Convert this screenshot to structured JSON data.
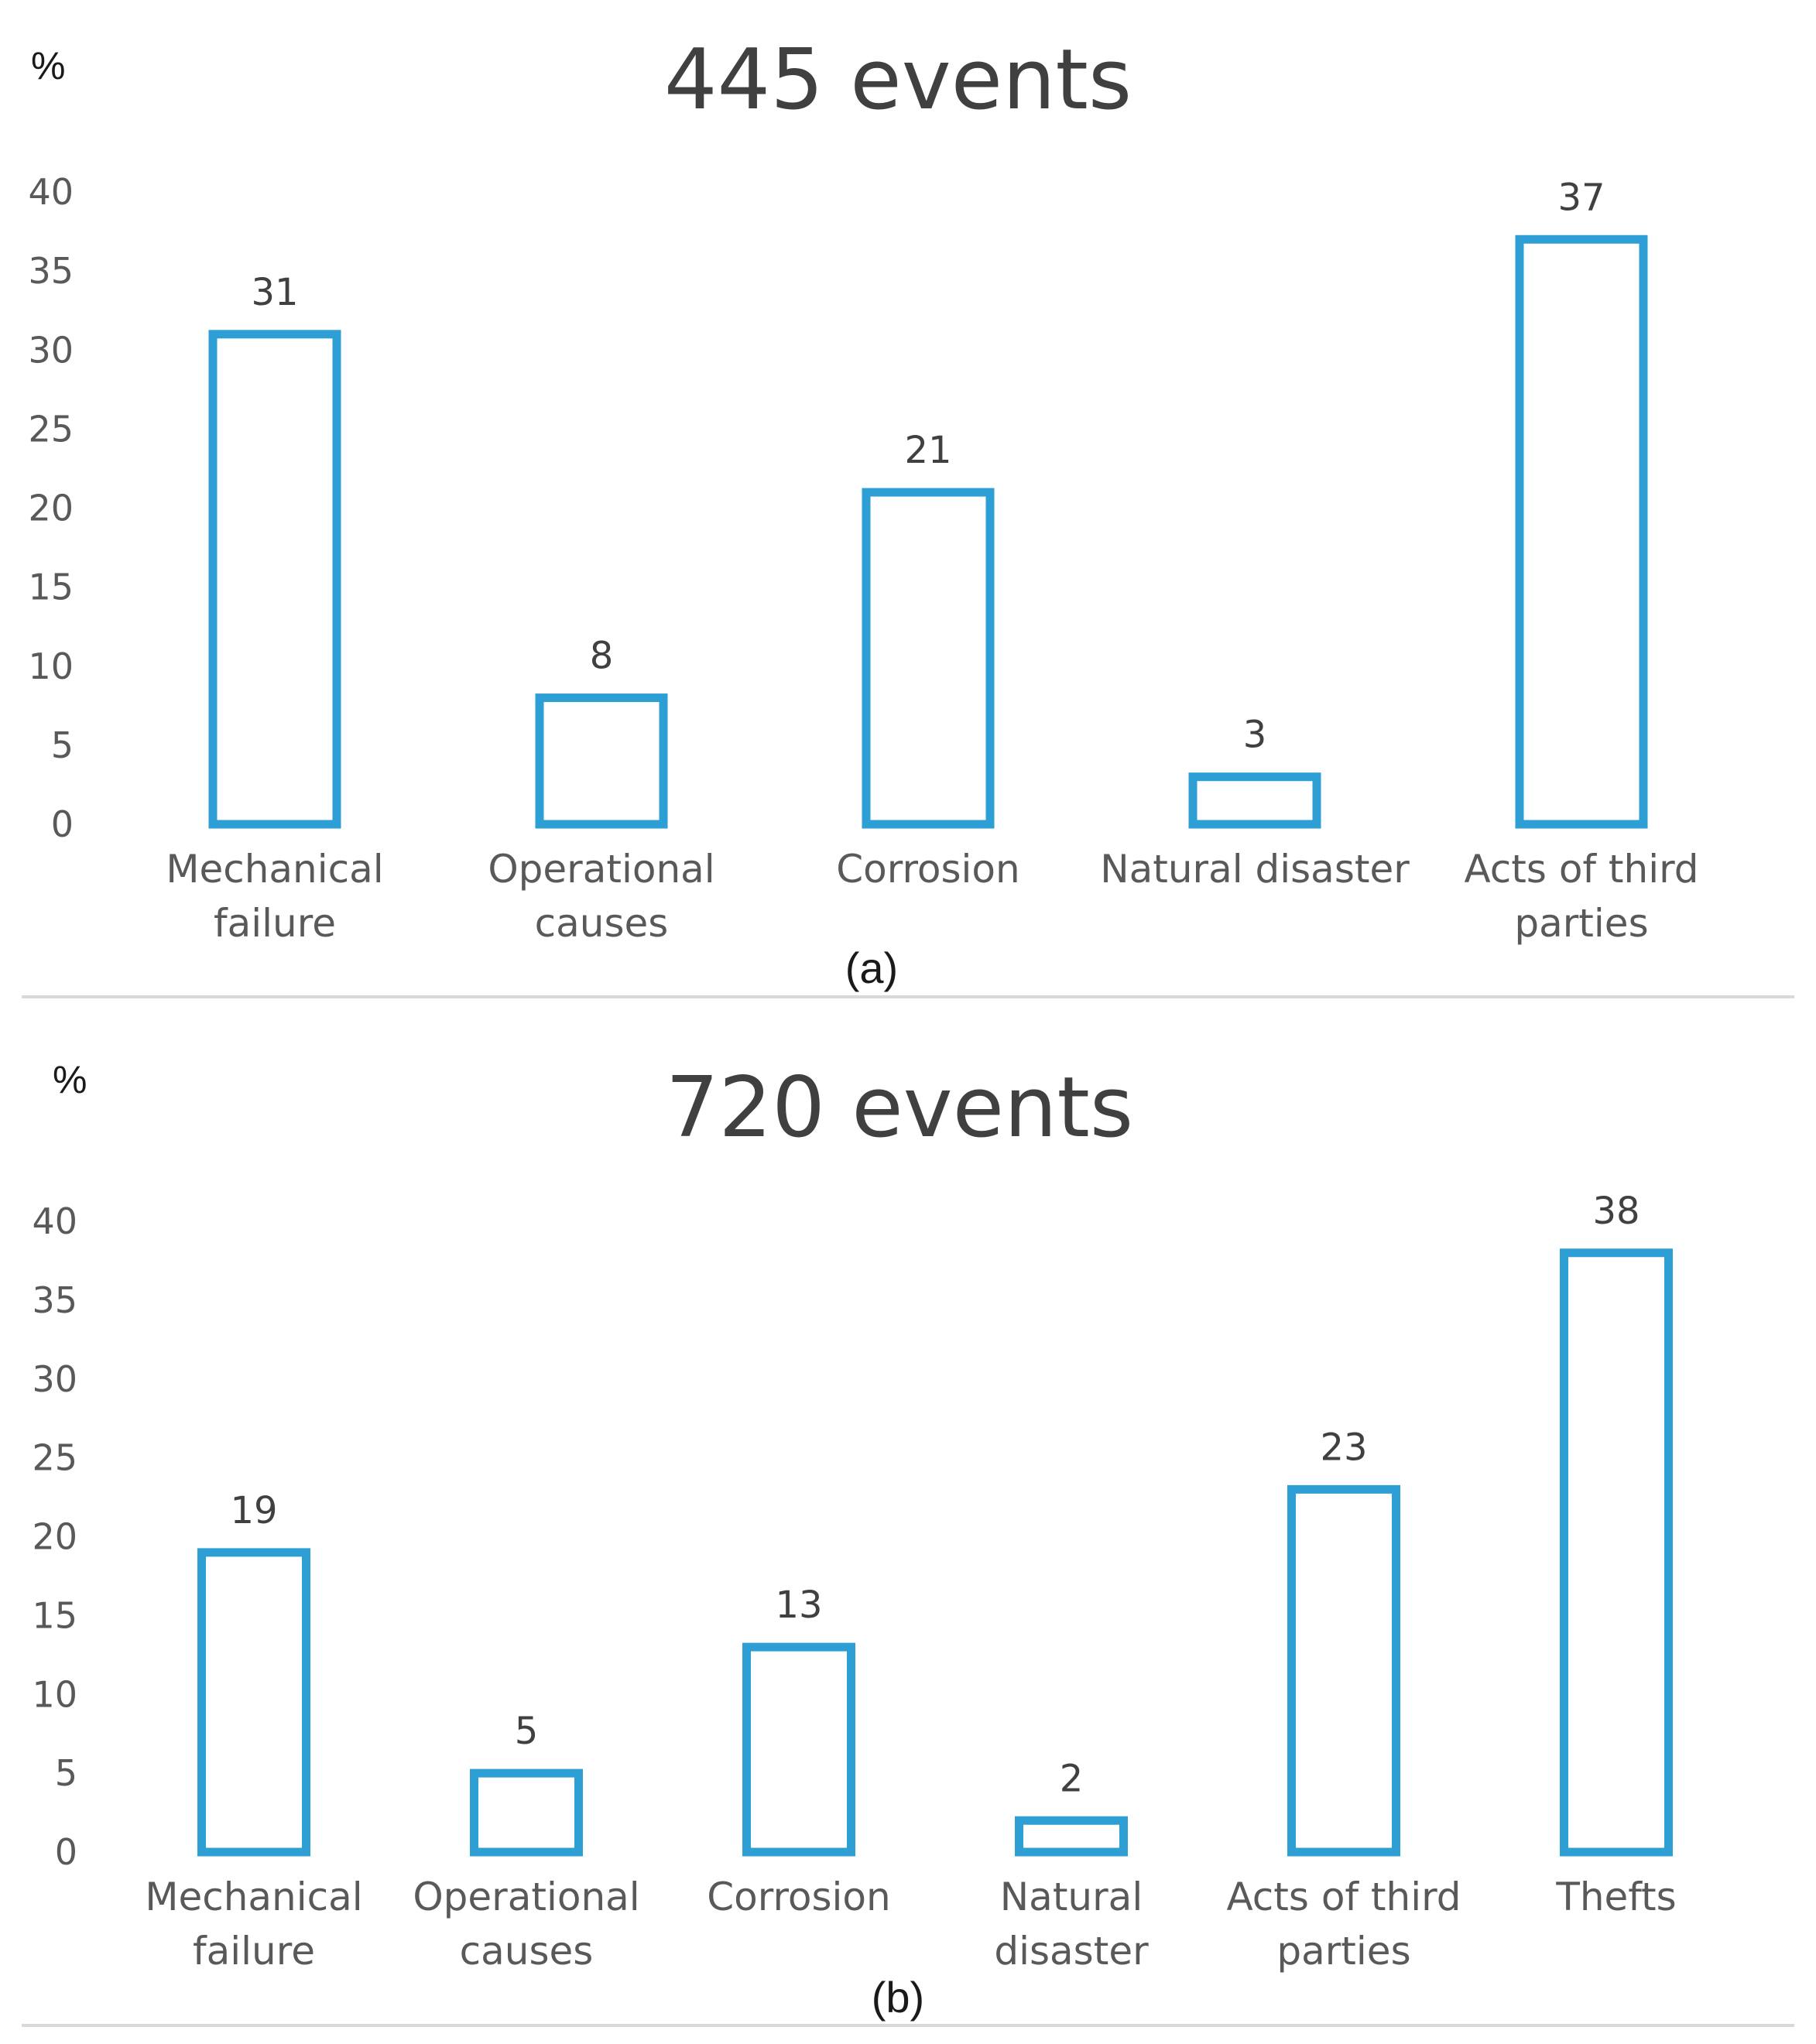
{
  "chart_data": [
    {
      "type": "bar",
      "panel_label": "(a)",
      "title": "445 events",
      "ylabel": "%",
      "xlabel": "",
      "ylim": [
        0,
        40
      ],
      "yticks": [
        "0",
        "5",
        "10",
        "15",
        "20",
        "25",
        "30",
        "35",
        "40"
      ],
      "categories": [
        [
          "Mechanical",
          "failure"
        ],
        [
          "Operational",
          "causes"
        ],
        [
          "Corrosion"
        ],
        [
          "Natural disaster"
        ],
        [
          "Acts of third",
          "parties"
        ]
      ],
      "values": [
        31,
        8,
        21,
        3,
        37
      ],
      "bar_color": "#2e9fd5",
      "grid": false
    },
    {
      "type": "bar",
      "panel_label": "(b)",
      "title": "720 events",
      "ylabel": "%",
      "xlabel": "",
      "ylim": [
        0,
        40
      ],
      "yticks": [
        "0",
        "5",
        "10",
        "15",
        "20",
        "25",
        "30",
        "35",
        "40"
      ],
      "categories": [
        [
          "Mechanical",
          "failure"
        ],
        [
          "Operational",
          "causes"
        ],
        [
          "Corrosion"
        ],
        [
          "Natural",
          "disaster"
        ],
        [
          "Acts of third",
          "parties"
        ],
        [
          "Thefts"
        ]
      ],
      "values": [
        19,
        5,
        13,
        2,
        23,
        38
      ],
      "bar_color": "#2e9fd5",
      "grid": false
    }
  ]
}
